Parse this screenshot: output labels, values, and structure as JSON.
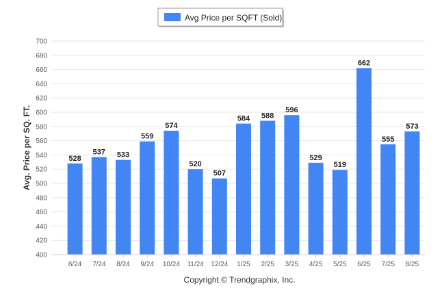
{
  "chart_data": {
    "type": "bar",
    "title": "",
    "legend": {
      "label": "Avg Price per SQFT (Sold)",
      "placement": "top-center"
    },
    "ylabel": "Avg. Price per SQ. FT.",
    "xlabel": "",
    "ylim": [
      400,
      700
    ],
    "ytick_step": 20,
    "grid": true,
    "categories": [
      "6/24",
      "7/24",
      "8/24",
      "9/24",
      "10/24",
      "11/24",
      "12/24",
      "1/25",
      "2/25",
      "3/25",
      "4/25",
      "5/25",
      "6/25",
      "7/25",
      "8/25"
    ],
    "series": [
      {
        "name": "Avg Price per SQFT (Sold)",
        "values": [
          528,
          537,
          533,
          559,
          574,
          520,
          507,
          584,
          588,
          596,
          529,
          519,
          662,
          555,
          573
        ]
      }
    ],
    "bar_color": "#4285f4"
  },
  "footer": {
    "copyright": "Copyright © Trendgraphix, Inc."
  }
}
